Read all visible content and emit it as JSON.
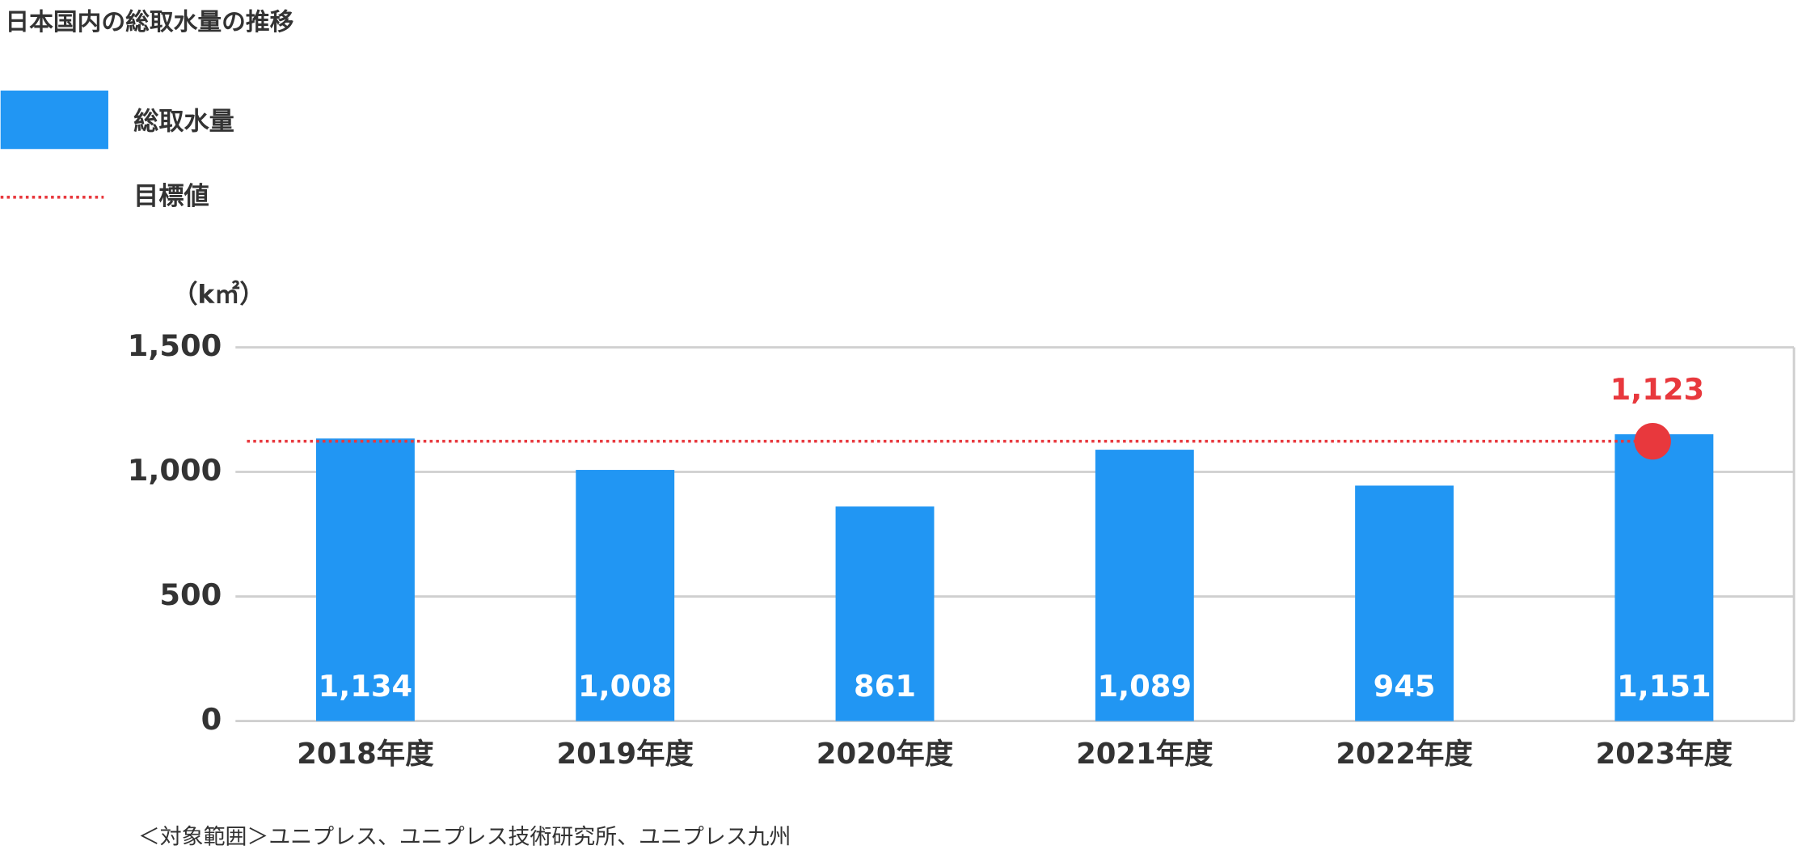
{
  "chart_data": {
    "type": "bar",
    "title": "日本国内の総取水量の推移",
    "unit_label": "（k㎡）",
    "categories": [
      "2018年度",
      "2019年度",
      "2020年度",
      "2021年度",
      "2022年度",
      "2023年度"
    ],
    "series": [
      {
        "name": "総取水量",
        "color": "#2196f3",
        "values": [
          1134,
          1008,
          861,
          1089,
          945,
          1151
        ],
        "value_labels": [
          "1,134",
          "1,008",
          "861",
          "1,089",
          "945",
          "1,151"
        ]
      }
    ],
    "target": {
      "name": "目標値",
      "value": 1123,
      "value_label": "1,123",
      "color": "#e8383d"
    },
    "ylim": [
      0,
      1500
    ],
    "yticks": [
      0,
      500,
      {
        "value": 1000,
        "label": "1,000"
      },
      {
        "value": 1500,
        "label": "1,500"
      }
    ],
    "grid": true,
    "footnote": "＜対象範囲＞ユニプレス、ユニプレス技術研究所、ユニプレス九州"
  }
}
